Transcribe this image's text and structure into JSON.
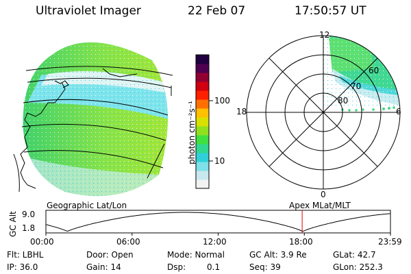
{
  "header": {
    "title": "Ultraviolet Imager",
    "date": "22 Feb 07",
    "time": "17:50:57 UT"
  },
  "left_panel": {
    "label": "Geographic Lat/Lon"
  },
  "right_panel": {
    "label": "Apex MLat/MLT",
    "mlt_labels": [
      "12",
      "18",
      "6",
      "0"
    ],
    "mlat_labels": [
      "60",
      "70",
      "80"
    ]
  },
  "colorbar": {
    "label": "photon cm⁻²s⁻¹",
    "ticks": [
      "100",
      "10"
    ],
    "scale": "log",
    "colors": [
      "#f2f2f2",
      "#c8e8ee",
      "#7ee0e8",
      "#2fd0d8",
      "#30d890",
      "#40e040",
      "#90e020",
      "#d8e000",
      "#ffc000",
      "#ff7000",
      "#ff2000",
      "#d00010",
      "#900030",
      "#500050",
      "#200040"
    ]
  },
  "altitude_plot": {
    "ylabel": "GC Alt",
    "y_ticks": [
      "9.0",
      "1.8"
    ],
    "x_ticks": [
      "00:00",
      "06:00",
      "12:00",
      "18:00",
      "23:59"
    ],
    "current_time_hours": 17.85,
    "marker_color": "#e00000"
  },
  "info": {
    "flt": "Flt: LBHL",
    "ip": "IP: 36.0",
    "door": "Door: Open",
    "gain": "Gain: 14",
    "mode": "Mode: Normal",
    "dsp_label": "Dsp:",
    "dsp_value": "0.1",
    "gc_alt": "GC Alt: 3.9 Re",
    "seq": "Seq: 39",
    "glat": "GLat:  42.7",
    "glon": "GLon: 252.3"
  }
}
